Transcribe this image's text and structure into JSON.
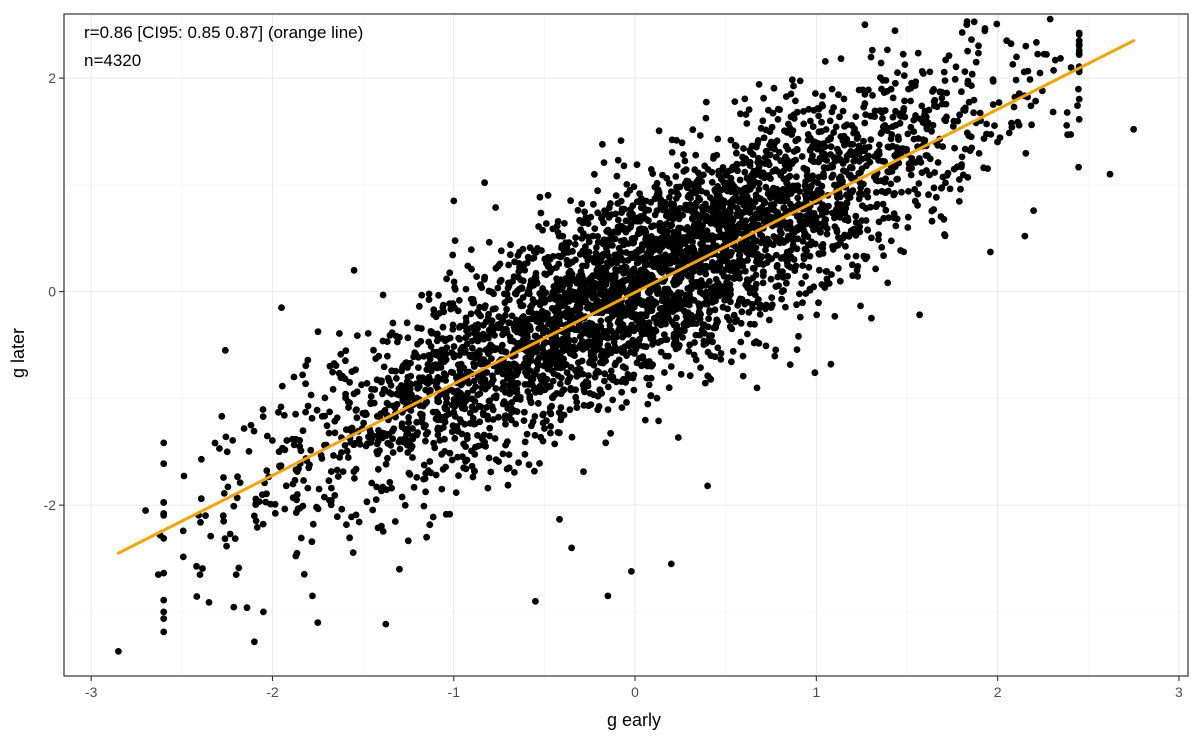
{
  "chart_data": {
    "type": "scatter",
    "xlabel": "g early",
    "ylabel": "g later",
    "xlim": [
      -3.15,
      3.05
    ],
    "ylim": [
      -3.6,
      2.6
    ],
    "x_ticks": [
      -3,
      -2,
      -1,
      0,
      1,
      2,
      3
    ],
    "x_tick_labels": [
      "-3",
      "-2",
      "-1",
      "0",
      "1",
      "2",
      "3"
    ],
    "y_ticks": [
      -2,
      0,
      2
    ],
    "y_tick_labels": [
      "-2",
      "0",
      "2"
    ],
    "grid": true,
    "annotations": [
      "r=0.86 [CI95: 0.85 0.87] (orange line)",
      "n=4320"
    ],
    "n": 4320,
    "correlation": {
      "r": 0.86,
      "ci95": [
        0.85,
        0.87
      ]
    },
    "fit_line": {
      "x": [
        -2.85,
        2.75
      ],
      "y": [
        -2.45,
        2.35
      ],
      "color": "#f5a300"
    },
    "point_color": "#000000",
    "points": {
      "x": [
        -2.85,
        -2.7,
        -2.62,
        -2.63,
        -2.4,
        -2.26,
        -2.1,
        -2.2,
        -2.05,
        -1.95,
        -1.8,
        -1.78,
        -1.75,
        -1.15,
        -1.3,
        -0.55,
        -0.35,
        -0.15,
        -0.02,
        0.2,
        0.4,
        1.08,
        2.15,
        2.62,
        2.75,
        2.45,
        1.83,
        2.05,
        0.55,
        -1.0,
        -1.55,
        -1.85,
        -2.25,
        -0.83,
        -0.18
      ],
      "y": [
        -3.37,
        -2.05,
        -2.28,
        -2.65,
        -2.65,
        -0.55,
        -3.28,
        -2.65,
        -3.0,
        -0.15,
        -1.65,
        -2.85,
        -3.1,
        -2.3,
        -2.6,
        -2.9,
        -2.4,
        -2.85,
        -2.62,
        -2.55,
        -1.82,
        -0.68,
        0.52,
        1.1,
        1.52,
        2.22,
        2.5,
        2.35,
        1.78,
        0.85,
        0.2,
        -1.45,
        -1.5,
        1.02,
        1.38
      ]
    }
  }
}
